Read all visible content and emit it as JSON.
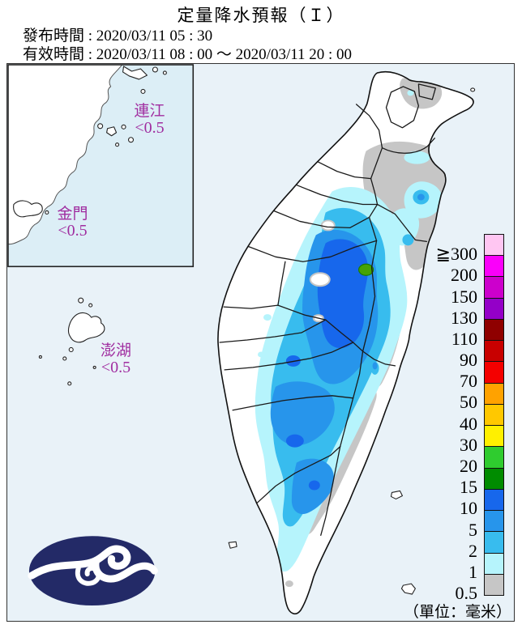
{
  "header": {
    "title": "定量降水預報（Ｉ）",
    "issued": "發布時間 : 2020/03/11 05 : 30",
    "valid": "有效時間 : 2020/03/11 08 : 00 ～ 2020/03/11 20 : 00"
  },
  "map": {
    "regions": {
      "lienchiang": {
        "name": "連江",
        "value": "<0.5"
      },
      "kinmen": {
        "name": "金門",
        "value": "<0.5"
      },
      "penghu": {
        "name": "澎湖",
        "value": "<0.5"
      }
    }
  },
  "legend": {
    "unit": "（單位：毫米）",
    "items": [
      {
        "label": "≧300",
        "color": "#FFC6F2"
      },
      {
        "label": "200",
        "color": "#FA00FA"
      },
      {
        "label": "150",
        "color": "#CC00CC"
      },
      {
        "label": "130",
        "color": "#9400C8"
      },
      {
        "label": "110",
        "color": "#8F0000"
      },
      {
        "label": "90",
        "color": "#C80000"
      },
      {
        "label": "70",
        "color": "#F40000"
      },
      {
        "label": "50",
        "color": "#FFA200"
      },
      {
        "label": "40",
        "color": "#FFC800"
      },
      {
        "label": "30",
        "color": "#FFF000"
      },
      {
        "label": "20",
        "color": "#2FCC2F"
      },
      {
        "label": "15",
        "color": "#008C00"
      },
      {
        "label": "10",
        "color": "#1767EC"
      },
      {
        "label": "5",
        "color": "#2795EB"
      },
      {
        "label": "2",
        "color": "#38BCEE"
      },
      {
        "label": "1",
        "color": "#B6F4FC"
      },
      {
        "label": "0.5",
        "color": "#C6C6C6"
      }
    ]
  },
  "palette": {
    "sea": "#E9F2F8",
    "inset_sea": "#DCEEF6",
    "land": "#FFFFFF",
    "border_line": "#1A1A1A",
    "label_color": "#A02DA0",
    "logo_navy": "#232A67",
    "lvl_05": "#C6C6C6",
    "lvl_1": "#B6F4FC",
    "lvl_2": "#38BCEE",
    "lvl_5": "#2795EB",
    "lvl_10": "#1767EC",
    "lvl_green": "#46A305"
  }
}
